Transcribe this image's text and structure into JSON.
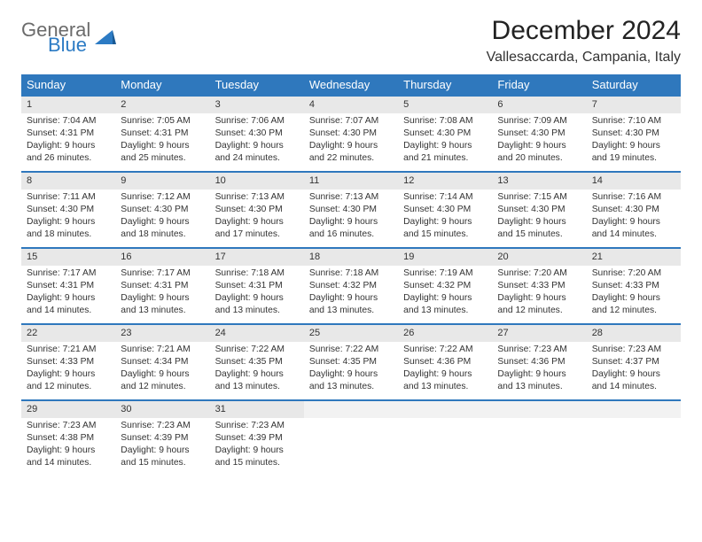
{
  "logo": {
    "word1": "General",
    "word2": "Blue",
    "shape_color": "#2c7bc4",
    "word1_color": "#6b6b6b",
    "word2_color": "#2c7bc4"
  },
  "title": "December 2024",
  "location": "Vallesaccarda, Campania, Italy",
  "colors": {
    "header_bg": "#2f78bd",
    "header_text": "#ffffff",
    "daynum_bg": "#e8e8e8",
    "daynum_border": "#2f78bd",
    "body_text": "#333333",
    "page_bg": "#ffffff"
  },
  "fonts": {
    "title_size": 30,
    "location_size": 16,
    "th_size": 13,
    "cell_size": 10.3,
    "daynum_size": 11
  },
  "weekdays": [
    "Sunday",
    "Monday",
    "Tuesday",
    "Wednesday",
    "Thursday",
    "Friday",
    "Saturday"
  ],
  "weeks": [
    [
      {
        "n": "1",
        "sr": "7:04 AM",
        "ss": "4:31 PM",
        "dl": "9 hours and 26 minutes."
      },
      {
        "n": "2",
        "sr": "7:05 AM",
        "ss": "4:31 PM",
        "dl": "9 hours and 25 minutes."
      },
      {
        "n": "3",
        "sr": "7:06 AM",
        "ss": "4:30 PM",
        "dl": "9 hours and 24 minutes."
      },
      {
        "n": "4",
        "sr": "7:07 AM",
        "ss": "4:30 PM",
        "dl": "9 hours and 22 minutes."
      },
      {
        "n": "5",
        "sr": "7:08 AM",
        "ss": "4:30 PM",
        "dl": "9 hours and 21 minutes."
      },
      {
        "n": "6",
        "sr": "7:09 AM",
        "ss": "4:30 PM",
        "dl": "9 hours and 20 minutes."
      },
      {
        "n": "7",
        "sr": "7:10 AM",
        "ss": "4:30 PM",
        "dl": "9 hours and 19 minutes."
      }
    ],
    [
      {
        "n": "8",
        "sr": "7:11 AM",
        "ss": "4:30 PM",
        "dl": "9 hours and 18 minutes."
      },
      {
        "n": "9",
        "sr": "7:12 AM",
        "ss": "4:30 PM",
        "dl": "9 hours and 18 minutes."
      },
      {
        "n": "10",
        "sr": "7:13 AM",
        "ss": "4:30 PM",
        "dl": "9 hours and 17 minutes."
      },
      {
        "n": "11",
        "sr": "7:13 AM",
        "ss": "4:30 PM",
        "dl": "9 hours and 16 minutes."
      },
      {
        "n": "12",
        "sr": "7:14 AM",
        "ss": "4:30 PM",
        "dl": "9 hours and 15 minutes."
      },
      {
        "n": "13",
        "sr": "7:15 AM",
        "ss": "4:30 PM",
        "dl": "9 hours and 15 minutes."
      },
      {
        "n": "14",
        "sr": "7:16 AM",
        "ss": "4:30 PM",
        "dl": "9 hours and 14 minutes."
      }
    ],
    [
      {
        "n": "15",
        "sr": "7:17 AM",
        "ss": "4:31 PM",
        "dl": "9 hours and 14 minutes."
      },
      {
        "n": "16",
        "sr": "7:17 AM",
        "ss": "4:31 PM",
        "dl": "9 hours and 13 minutes."
      },
      {
        "n": "17",
        "sr": "7:18 AM",
        "ss": "4:31 PM",
        "dl": "9 hours and 13 minutes."
      },
      {
        "n": "18",
        "sr": "7:18 AM",
        "ss": "4:32 PM",
        "dl": "9 hours and 13 minutes."
      },
      {
        "n": "19",
        "sr": "7:19 AM",
        "ss": "4:32 PM",
        "dl": "9 hours and 13 minutes."
      },
      {
        "n": "20",
        "sr": "7:20 AM",
        "ss": "4:33 PM",
        "dl": "9 hours and 12 minutes."
      },
      {
        "n": "21",
        "sr": "7:20 AM",
        "ss": "4:33 PM",
        "dl": "9 hours and 12 minutes."
      }
    ],
    [
      {
        "n": "22",
        "sr": "7:21 AM",
        "ss": "4:33 PM",
        "dl": "9 hours and 12 minutes."
      },
      {
        "n": "23",
        "sr": "7:21 AM",
        "ss": "4:34 PM",
        "dl": "9 hours and 12 minutes."
      },
      {
        "n": "24",
        "sr": "7:22 AM",
        "ss": "4:35 PM",
        "dl": "9 hours and 13 minutes."
      },
      {
        "n": "25",
        "sr": "7:22 AM",
        "ss": "4:35 PM",
        "dl": "9 hours and 13 minutes."
      },
      {
        "n": "26",
        "sr": "7:22 AM",
        "ss": "4:36 PM",
        "dl": "9 hours and 13 minutes."
      },
      {
        "n": "27",
        "sr": "7:23 AM",
        "ss": "4:36 PM",
        "dl": "9 hours and 13 minutes."
      },
      {
        "n": "28",
        "sr": "7:23 AM",
        "ss": "4:37 PM",
        "dl": "9 hours and 14 minutes."
      }
    ],
    [
      {
        "n": "29",
        "sr": "7:23 AM",
        "ss": "4:38 PM",
        "dl": "9 hours and 14 minutes."
      },
      {
        "n": "30",
        "sr": "7:23 AM",
        "ss": "4:39 PM",
        "dl": "9 hours and 15 minutes."
      },
      {
        "n": "31",
        "sr": "7:23 AM",
        "ss": "4:39 PM",
        "dl": "9 hours and 15 minutes."
      },
      null,
      null,
      null,
      null
    ]
  ],
  "labels": {
    "sunrise": "Sunrise:",
    "sunset": "Sunset:",
    "daylight": "Daylight:"
  }
}
